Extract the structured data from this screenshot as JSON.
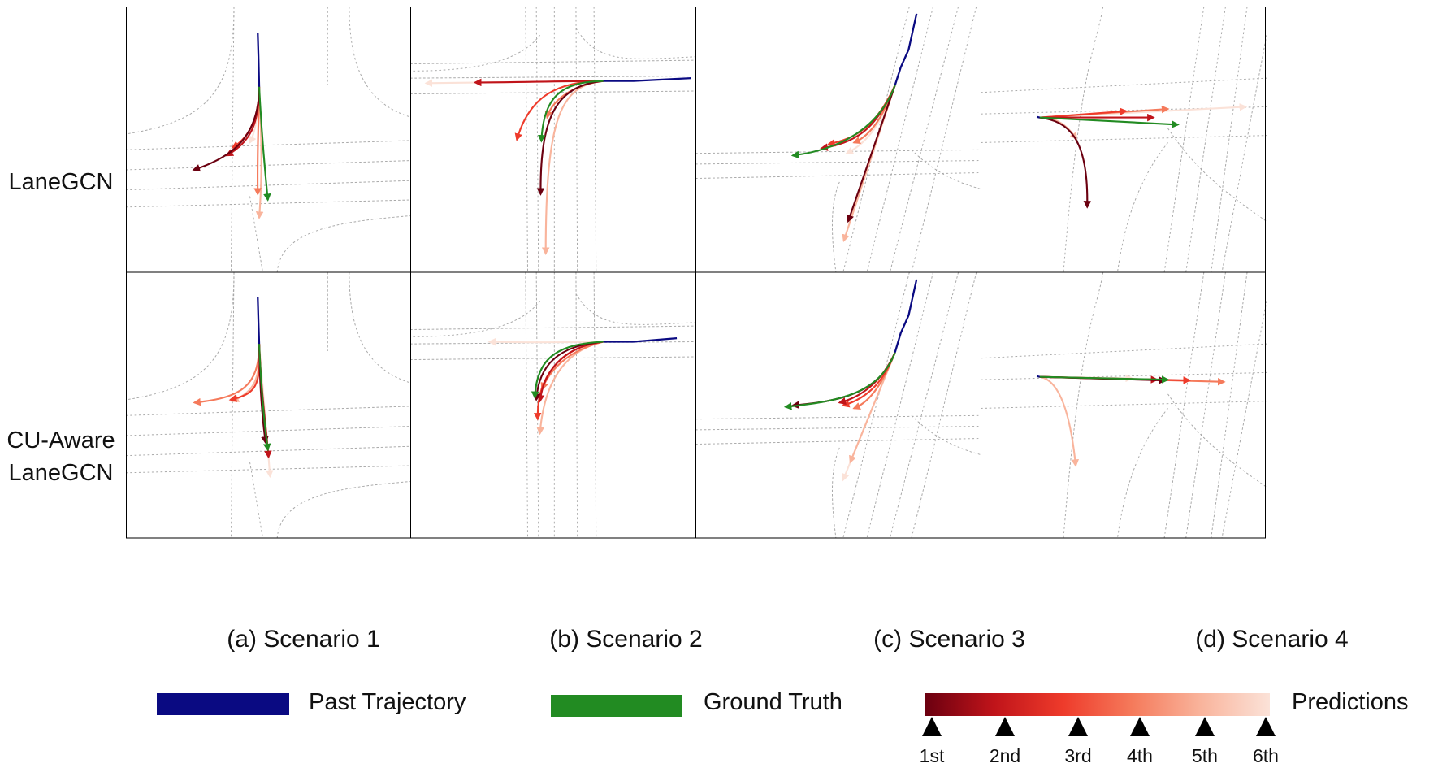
{
  "row_labels": [
    {
      "line1": "LaneGCN",
      "line2": ""
    },
    {
      "line1": "CU-Aware",
      "line2": "LaneGCN"
    }
  ],
  "captions": [
    "(a) Scenario 1",
    "(b) Scenario 2",
    "(c) Scenario 3",
    "(d) Scenario 4"
  ],
  "legend": {
    "past_label": "Past Trajectory",
    "truth_label": "Ground Truth",
    "pred_label": "Predictions",
    "ticks": [
      "1st",
      "2nd",
      "3rd",
      "4th",
      "5th",
      "6th"
    ]
  },
  "colors": {
    "past": "#0a0a82",
    "truth": "#228b22",
    "pred": [
      "#6b0010",
      "#c0141a",
      "#ee3b2b",
      "#f57a5b",
      "#f9b49c",
      "#fbe2d8"
    ],
    "lanes": "#a8a8a8"
  }
}
